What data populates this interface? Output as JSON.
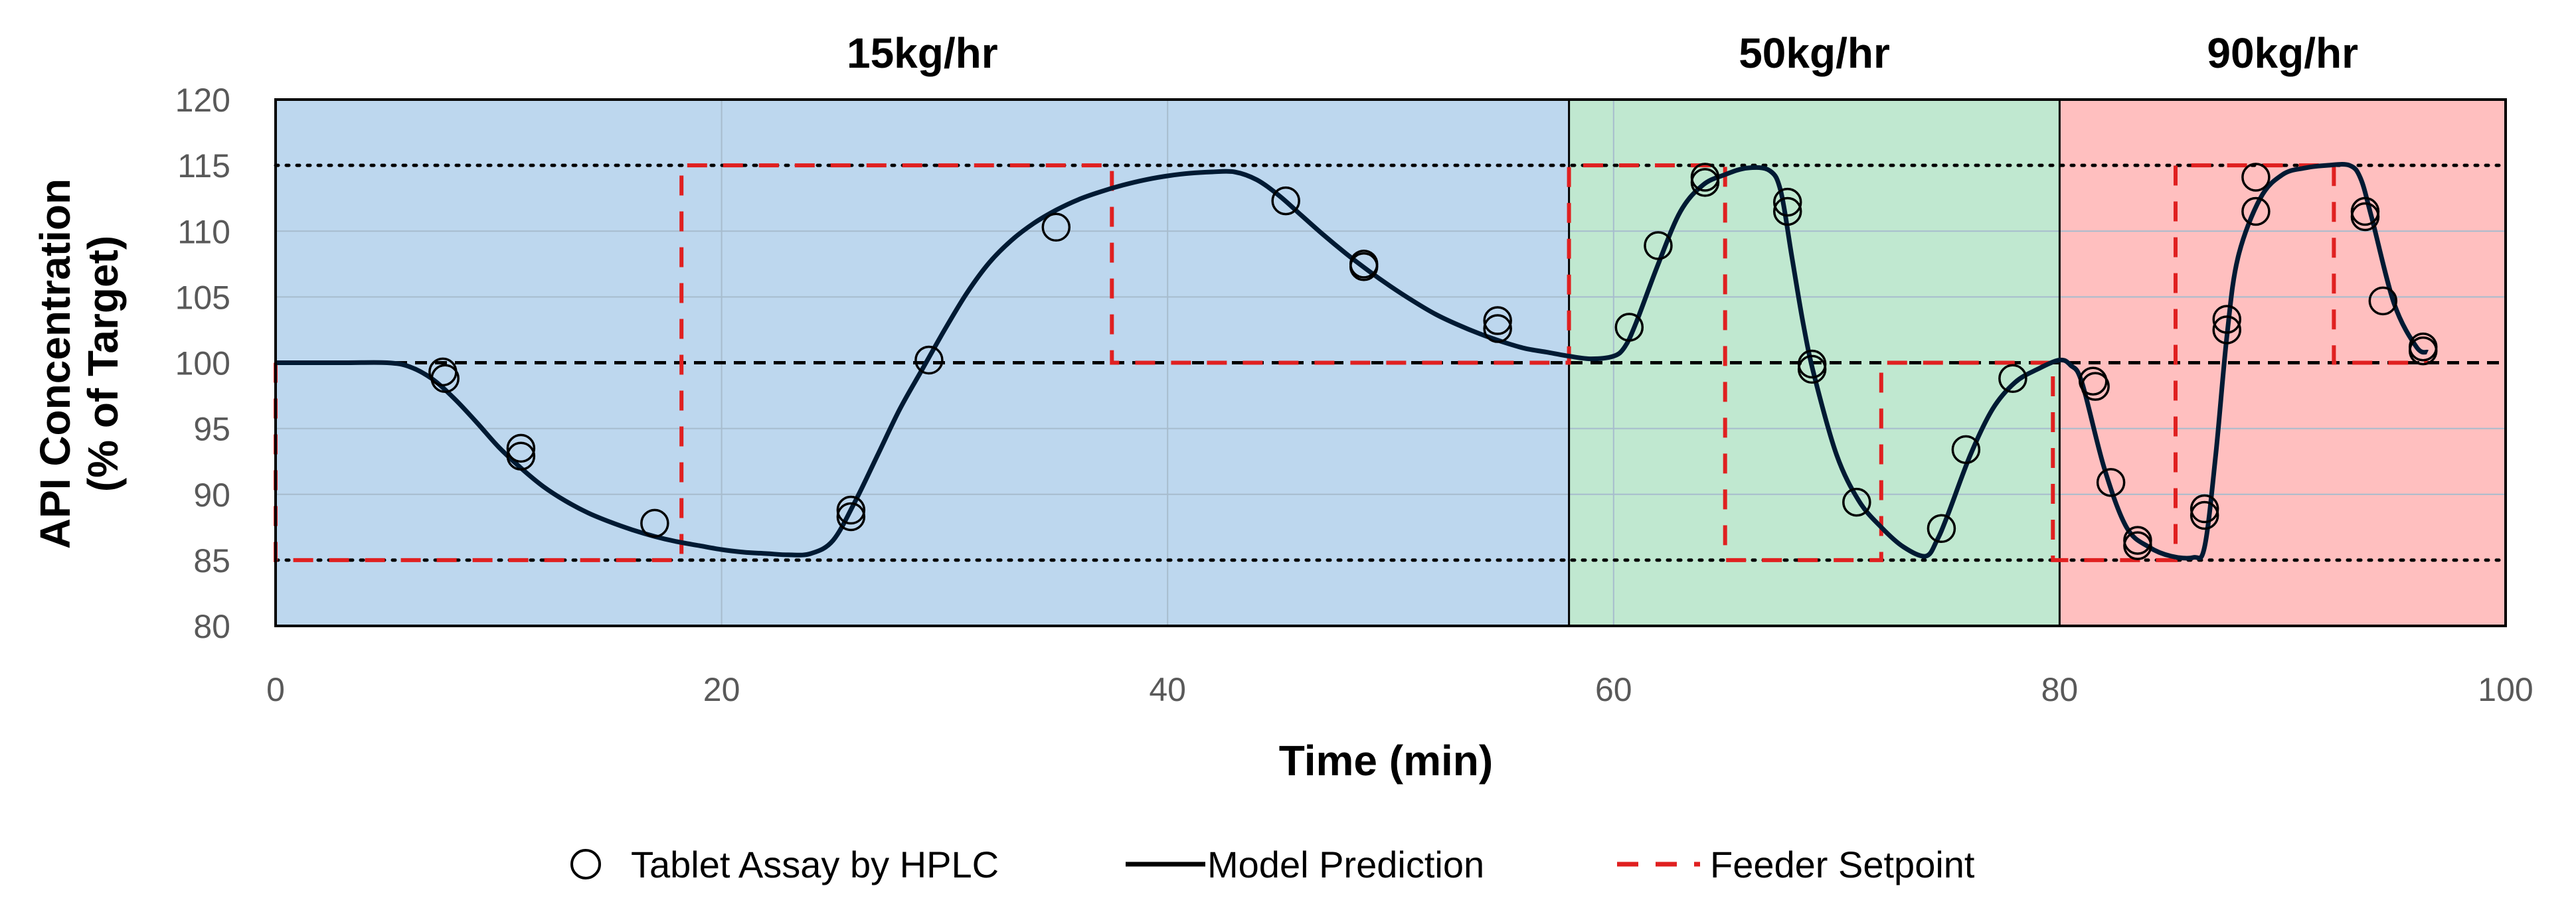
{
  "chart_data": {
    "type": "line",
    "xlabel": "Time (min)",
    "ylabel_line1": "API Concentration",
    "ylabel_line2": "(% of Target)",
    "xlim": [
      0,
      100
    ],
    "ylim": [
      80,
      120
    ],
    "x_ticks": [
      0,
      20,
      40,
      60,
      80,
      100
    ],
    "y_ticks": [
      80,
      85,
      90,
      95,
      100,
      105,
      110,
      115,
      120
    ],
    "regions": [
      {
        "label": "15kg/hr",
        "x_start": 0,
        "x_end": 58,
        "color": "#bdd7ee"
      },
      {
        "label": "50kg/hr",
        "x_start": 58,
        "x_end": 80,
        "color": "#c0e8d0"
      },
      {
        "label": "90kg/hr",
        "x_start": 80,
        "x_end": 100,
        "color": "#ffbfbf"
      }
    ],
    "reference_lines": {
      "upper": 115,
      "lower": 85,
      "target": 100
    },
    "series": [
      {
        "name": "Tablet Assay by HPLC",
        "kind": "scatter",
        "marker": "open-circle",
        "color": "#000000",
        "points": [
          [
            7.5,
            99.3
          ],
          [
            7.6,
            98.8
          ],
          [
            11,
            93.5
          ],
          [
            11,
            92.9
          ],
          [
            17,
            87.8
          ],
          [
            25.8,
            88.8
          ],
          [
            25.8,
            88.3
          ],
          [
            29.3,
            100.2
          ],
          [
            35,
            110.3
          ],
          [
            45.3,
            112.3
          ],
          [
            48.8,
            107.5
          ],
          [
            48.8,
            107.3
          ],
          [
            54.8,
            103.2
          ],
          [
            54.8,
            102.6
          ],
          [
            60.7,
            102.7
          ],
          [
            62,
            108.9
          ],
          [
            64.1,
            113.7
          ],
          [
            64.1,
            114.1
          ],
          [
            67.8,
            112.2
          ],
          [
            67.8,
            111.5
          ],
          [
            68.9,
            99.9
          ],
          [
            68.9,
            99.5
          ],
          [
            70.9,
            89.4
          ],
          [
            74.7,
            87.4
          ],
          [
            75.8,
            93.4
          ],
          [
            77.9,
            98.8
          ],
          [
            81.5,
            98.6
          ],
          [
            81.6,
            98.2
          ],
          [
            82.3,
            90.9
          ],
          [
            83.5,
            86.5
          ],
          [
            83.5,
            86.1
          ],
          [
            86.5,
            88.9
          ],
          [
            86.5,
            88.4
          ],
          [
            87.5,
            103.3
          ],
          [
            87.5,
            102.5
          ],
          [
            88.8,
            114.1
          ],
          [
            88.8,
            111.5
          ],
          [
            93.7,
            111.5
          ],
          [
            93.7,
            111.1
          ],
          [
            94.5,
            104.7
          ],
          [
            96.3,
            101.2
          ],
          [
            96.3,
            100.9
          ]
        ]
      },
      {
        "name": "Model Prediction",
        "kind": "line",
        "color": "#001a33",
        "points": [
          [
            0,
            100
          ],
          [
            3,
            100
          ],
          [
            5,
            100
          ],
          [
            6,
            99.7
          ],
          [
            7,
            98.8
          ],
          [
            8,
            97.3
          ],
          [
            9,
            95.5
          ],
          [
            10,
            93.6
          ],
          [
            11,
            92
          ],
          [
            12,
            90.6
          ],
          [
            13,
            89.5
          ],
          [
            14,
            88.6
          ],
          [
            15,
            87.9
          ],
          [
            16,
            87.3
          ],
          [
            17,
            86.8
          ],
          [
            18,
            86.4
          ],
          [
            19,
            86.1
          ],
          [
            20,
            85.8
          ],
          [
            21,
            85.6
          ],
          [
            22,
            85.5
          ],
          [
            23,
            85.4
          ],
          [
            24,
            85.5
          ],
          [
            25,
            86.5
          ],
          [
            26,
            89.5
          ],
          [
            27,
            93
          ],
          [
            28,
            96.5
          ],
          [
            29,
            99.5
          ],
          [
            30,
            102.5
          ],
          [
            31,
            105.3
          ],
          [
            32,
            107.6
          ],
          [
            33,
            109.3
          ],
          [
            34,
            110.6
          ],
          [
            35,
            111.6
          ],
          [
            36,
            112.4
          ],
          [
            37,
            113
          ],
          [
            38,
            113.5
          ],
          [
            39,
            113.9
          ],
          [
            40,
            114.2
          ],
          [
            41,
            114.4
          ],
          [
            42,
            114.5
          ],
          [
            43,
            114.5
          ],
          [
            44,
            113.9
          ],
          [
            45,
            112.7
          ],
          [
            46,
            111.2
          ],
          [
            47,
            109.7
          ],
          [
            48,
            108.3
          ],
          [
            49,
            107
          ],
          [
            50,
            105.8
          ],
          [
            51,
            104.7
          ],
          [
            52,
            103.7
          ],
          [
            53,
            102.9
          ],
          [
            54,
            102.2
          ],
          [
            55,
            101.6
          ],
          [
            56,
            101.1
          ],
          [
            57,
            100.8
          ],
          [
            58,
            100.5
          ],
          [
            59,
            100.3
          ],
          [
            60,
            100.5
          ],
          [
            60.5,
            101.2
          ],
          [
            61,
            103
          ],
          [
            62,
            107.5
          ],
          [
            63,
            111.5
          ],
          [
            64,
            113.5
          ],
          [
            65,
            114.3
          ],
          [
            66,
            114.8
          ],
          [
            67,
            114.6
          ],
          [
            67.5,
            113
          ],
          [
            68,
            108
          ],
          [
            68.5,
            103
          ],
          [
            69,
            99
          ],
          [
            70,
            93
          ],
          [
            71,
            89.5
          ],
          [
            72,
            87.5
          ],
          [
            73,
            86
          ],
          [
            74,
            85.3
          ],
          [
            74.5,
            86.5
          ],
          [
            75,
            88.5
          ],
          [
            76,
            93
          ],
          [
            77,
            96.5
          ],
          [
            78,
            98.5
          ],
          [
            79,
            99.5
          ],
          [
            80,
            100.2
          ],
          [
            80.5,
            99.8
          ],
          [
            81,
            98.5
          ],
          [
            82,
            92
          ],
          [
            83,
            87.5
          ],
          [
            84,
            86
          ],
          [
            85,
            85.3
          ],
          [
            86,
            85.2
          ],
          [
            86.5,
            86
          ],
          [
            87,
            93
          ],
          [
            87.5,
            102
          ],
          [
            88,
            108
          ],
          [
            89,
            112.5
          ],
          [
            90,
            114.3
          ],
          [
            91,
            114.8
          ],
          [
            92,
            115
          ],
          [
            93,
            115
          ],
          [
            93.5,
            114
          ],
          [
            94,
            111
          ],
          [
            95,
            104.5
          ],
          [
            96,
            101.2
          ],
          [
            96.5,
            100.8
          ]
        ]
      },
      {
        "name": "Feeder Setpoint",
        "kind": "step",
        "color": "#e02020",
        "points": [
          [
            0,
            100
          ],
          [
            0,
            85
          ],
          [
            18.2,
            85
          ],
          [
            18.2,
            115
          ],
          [
            37.5,
            115
          ],
          [
            37.5,
            100
          ],
          [
            58,
            100
          ],
          [
            58,
            115
          ],
          [
            65,
            115
          ],
          [
            65,
            85
          ],
          [
            72,
            85
          ],
          [
            72,
            100
          ],
          [
            79.7,
            100
          ],
          [
            79.7,
            85
          ],
          [
            85.2,
            85
          ],
          [
            85.2,
            115
          ],
          [
            92.3,
            115
          ],
          [
            92.3,
            100
          ],
          [
            96.5,
            100
          ]
        ]
      }
    ],
    "legend": [
      {
        "label": "Tablet Assay by HPLC",
        "symbol": "open-circle"
      },
      {
        "label": "Model Prediction",
        "symbol": "solid-line"
      },
      {
        "label": "Feeder Setpoint",
        "symbol": "dashed-line"
      }
    ],
    "legend_position": "bottom"
  }
}
